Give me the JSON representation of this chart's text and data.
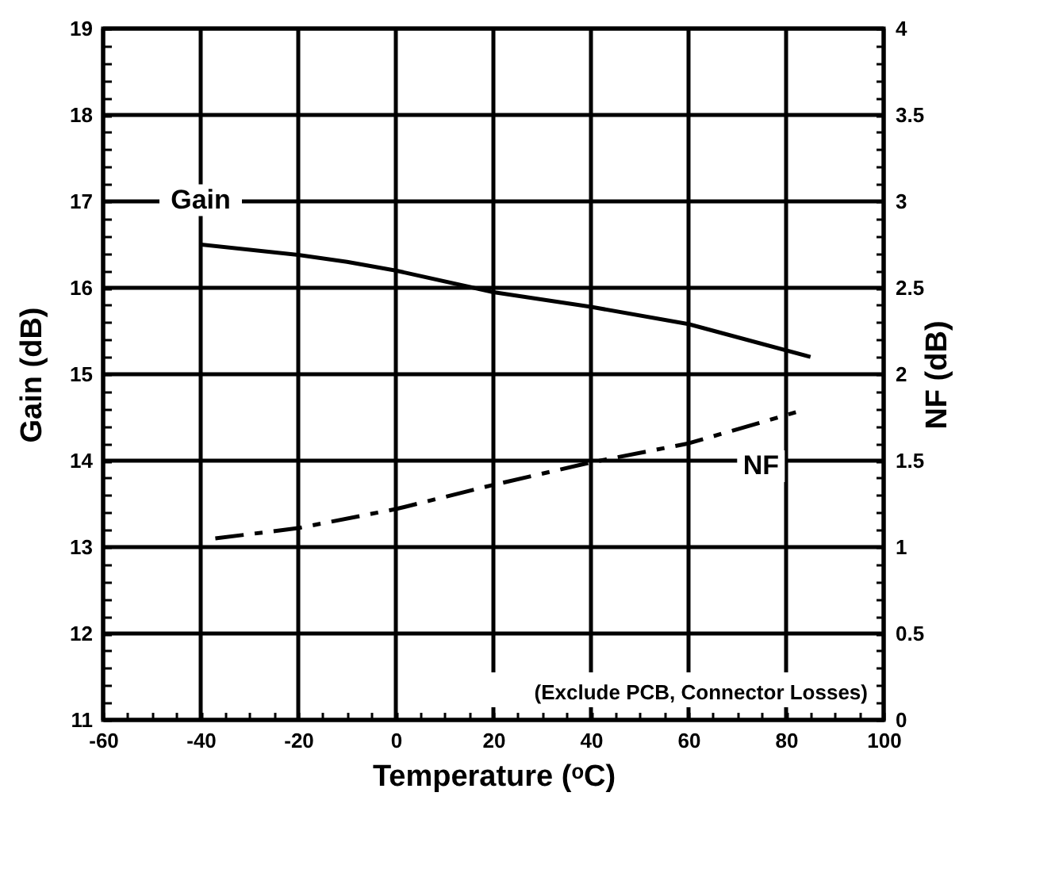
{
  "chart_data": {
    "type": "line",
    "xlabel": "Temperature (ᵒC)",
    "ylabel": "Gain (dB)",
    "y2label": "NF (dB)",
    "xlim": [
      -60,
      100
    ],
    "xticks": [
      -60,
      {
        "value": -55,
        "label": null
      },
      {
        "value": -50,
        "label": null
      },
      {
        "value": -45,
        "label": null
      },
      -40,
      {
        "value": -35,
        "label": null
      },
      {
        "value": -30,
        "label": null
      },
      {
        "value": -25,
        "label": null
      },
      -20,
      {
        "value": -15,
        "label": null
      },
      {
        "value": -10,
        "label": null
      },
      {
        "value": -5,
        "label": null
      },
      0,
      {
        "value": 5,
        "label": null
      },
      {
        "value": 10,
        "label": null
      },
      {
        "value": 15,
        "label": null
      },
      20,
      {
        "value": 25,
        "label": null
      },
      {
        "value": 30,
        "label": null
      },
      {
        "value": 35,
        "label": null
      },
      40,
      {
        "value": 45,
        "label": null
      },
      {
        "value": 50,
        "label": null
      },
      {
        "value": 55,
        "label": null
      },
      60,
      {
        "value": 65,
        "label": null
      },
      {
        "value": 70,
        "label": null
      },
      {
        "value": 75,
        "label": null
      },
      80,
      {
        "value": 85,
        "label": null
      },
      {
        "value": 90,
        "label": null
      },
      {
        "value": 95,
        "label": null
      },
      100
    ],
    "ylim": [
      11,
      19
    ],
    "yticks": [
      11,
      {
        "value": 11.2,
        "label": null
      },
      {
        "value": 11.4,
        "label": null
      },
      {
        "value": 11.6,
        "label": null
      },
      {
        "value": 11.8,
        "label": null
      },
      12,
      {
        "value": 12.2,
        "label": null
      },
      {
        "value": 12.4,
        "label": null
      },
      {
        "value": 12.6,
        "label": null
      },
      {
        "value": 12.8,
        "label": null
      },
      13,
      {
        "value": 13.2,
        "label": null
      },
      {
        "value": 13.4,
        "label": null
      },
      {
        "value": 13.6,
        "label": null
      },
      {
        "value": 13.8,
        "label": null
      },
      14,
      {
        "value": 14.2,
        "label": null
      },
      {
        "value": 14.4,
        "label": null
      },
      {
        "value": 14.6,
        "label": null
      },
      {
        "value": 14.8,
        "label": null
      },
      15,
      {
        "value": 15.2,
        "label": null
      },
      {
        "value": 15.4,
        "label": null
      },
      {
        "value": 15.6,
        "label": null
      },
      {
        "value": 15.8,
        "label": null
      },
      16,
      {
        "value": 16.2,
        "label": null
      },
      {
        "value": 16.4,
        "label": null
      },
      {
        "value": 16.6,
        "label": null
      },
      {
        "value": 16.8,
        "label": null
      },
      17,
      {
        "value": 17.2,
        "label": null
      },
      {
        "value": 17.4,
        "label": null
      },
      {
        "value": 17.6,
        "label": null
      },
      {
        "value": 17.8,
        "label": null
      },
      18,
      {
        "value": 18.2,
        "label": null
      },
      {
        "value": 18.4,
        "label": null
      },
      {
        "value": 18.6,
        "label": null
      },
      {
        "value": 18.8,
        "label": null
      },
      19
    ],
    "y2lim": [
      0,
      4
    ],
    "y2ticks": [
      0,
      {
        "value": 0.1,
        "label": null
      },
      {
        "value": 0.2,
        "label": null
      },
      {
        "value": 0.3,
        "label": null
      },
      {
        "value": 0.4,
        "label": null
      },
      0.5,
      {
        "value": 0.6,
        "label": null
      },
      {
        "value": 0.7,
        "label": null
      },
      {
        "value": 0.8,
        "label": null
      },
      {
        "value": 0.9,
        "label": null
      },
      1,
      {
        "value": 1.1,
        "label": null
      },
      {
        "value": 1.2,
        "label": null
      },
      {
        "value": 1.3,
        "label": null
      },
      {
        "value": 1.4,
        "label": null
      },
      1.5,
      {
        "value": 1.6,
        "label": null
      },
      {
        "value": 1.7,
        "label": null
      },
      {
        "value": 1.8,
        "label": null
      },
      {
        "value": 1.9,
        "label": null
      },
      2,
      {
        "value": 2.1,
        "label": null
      },
      {
        "value": 2.2,
        "label": null
      },
      {
        "value": 2.3,
        "label": null
      },
      {
        "value": 2.4,
        "label": null
      },
      2.5,
      {
        "value": 2.6,
        "label": null
      },
      {
        "value": 2.7,
        "label": null
      },
      {
        "value": 2.8,
        "label": null
      },
      {
        "value": 2.9,
        "label": null
      },
      3,
      {
        "value": 3.1,
        "label": null
      },
      {
        "value": 3.2,
        "label": null
      },
      {
        "value": 3.3,
        "label": null
      },
      {
        "value": 3.4,
        "label": null
      },
      3.5,
      {
        "value": 3.6,
        "label": null
      },
      {
        "value": 3.7,
        "label": null
      },
      {
        "value": 3.8,
        "label": null
      },
      {
        "value": 3.9,
        "label": null
      },
      4
    ],
    "grid": true,
    "series": [
      {
        "name": "Gain",
        "color": "#000000",
        "line_style": "solid",
        "x": [
          -40,
          -20,
          -10,
          0,
          20,
          40,
          60,
          85
        ],
        "values": [
          16.5,
          16.38,
          16.3,
          16.2,
          15.95,
          15.78,
          15.58,
          15.2
        ]
      },
      {
        "name": "NF",
        "color": "#000000",
        "line_style": "dashed",
        "axis": "y2",
        "x": [
          -37,
          -20,
          0,
          20,
          40,
          60,
          82
        ],
        "values": [
          1.05,
          1.11,
          1.22,
          1.36,
          1.49,
          1.6,
          1.78
        ]
      }
    ],
    "annotations": [
      "(Exclude PCB, Connector Losses)"
    ]
  }
}
